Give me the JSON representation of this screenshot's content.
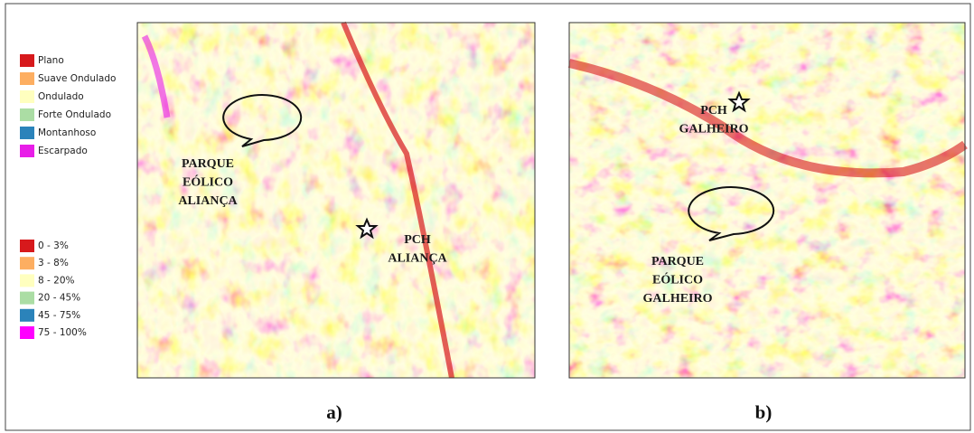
{
  "legend_classes": [
    {
      "label": "Plano",
      "color": "#d7191c"
    },
    {
      "label": "Suave Ondulado",
      "color": "#fdae61"
    },
    {
      "label": "Ondulado",
      "color": "#ffffbf"
    },
    {
      "label": "Forte Ondulado",
      "color": "#abdda4"
    },
    {
      "label": "Montanhoso",
      "color": "#2b83ba"
    },
    {
      "label": "Escarpado",
      "color": "#e81ee8"
    }
  ],
  "legend_slopes": [
    {
      "label": "0 - 3%",
      "color": "#d7191c"
    },
    {
      "label": "3 - 8%",
      "color": "#fdae61"
    },
    {
      "label": "8 - 20%",
      "color": "#ffffbf"
    },
    {
      "label": "20 - 45%",
      "color": "#abdda4"
    },
    {
      "label": "45 - 75%",
      "color": "#2b83ba"
    },
    {
      "label": "75 - 100%",
      "color": "#ff00ff"
    }
  ],
  "panels": [
    {
      "caption": "a)",
      "labels": [
        {
          "lines": [
            "PARQUE",
            "EÓLICO",
            "ALIANÇA"
          ]
        },
        {
          "lines": [
            "PCH",
            "ALIANÇA"
          ]
        }
      ]
    },
    {
      "caption": "b)",
      "labels": [
        {
          "lines": [
            "PCH",
            "GALHEIRO"
          ]
        },
        {
          "lines": [
            "PARQUE",
            "EÓLICO",
            "GALHEIRO"
          ]
        }
      ]
    }
  ]
}
